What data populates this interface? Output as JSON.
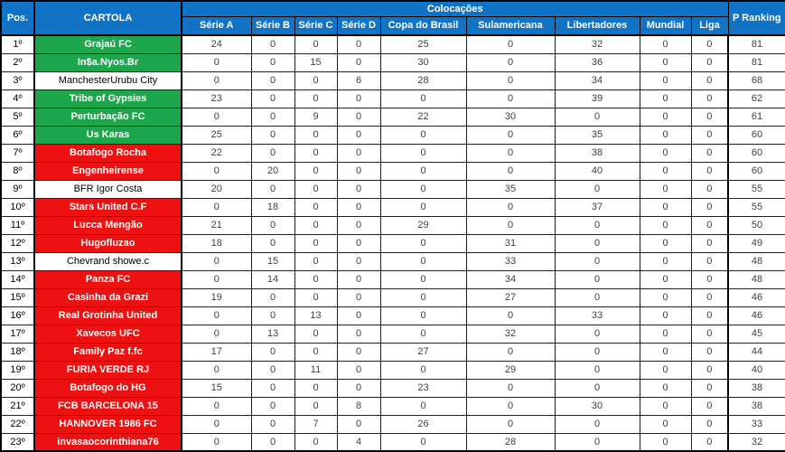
{
  "colors": {
    "header_bg": "#1173C5",
    "header_text": "#FFFFFF",
    "green_highlight": "#1EA64D",
    "red_highlight": "#EE1111",
    "number_text": "#3F3F3F",
    "border": "#000000"
  },
  "chart_data": {
    "type": "table",
    "title": "Colocações",
    "columns": [
      "Pos.",
      "CARTOLA",
      "Série A",
      "Série B",
      "Série C",
      "Série D",
      "Copa do Brasil",
      "Sulamericana",
      "Libertadores",
      "Mundial",
      "Liga",
      "P Ranking"
    ],
    "group_header": {
      "label": "Colocações",
      "spans": [
        "Série A",
        "Série B",
        "Série C",
        "Série D",
        "Copa do Brasil",
        "Sulamericana",
        "Libertadores",
        "Mundial",
        "Liga"
      ]
    },
    "rows": [
      {
        "pos": "1º",
        "cartola": "Grajaú FC",
        "highlight": "green",
        "values": [
          24,
          0,
          0,
          0,
          25,
          0,
          32,
          0,
          0
        ],
        "p_ranking": 81
      },
      {
        "pos": "2º",
        "cartola": "In$a.Nyos.Br",
        "highlight": "green",
        "values": [
          0,
          0,
          15,
          0,
          30,
          0,
          36,
          0,
          0
        ],
        "p_ranking": 81
      },
      {
        "pos": "3º",
        "cartola": "ManchesterUrubu City",
        "highlight": "white",
        "values": [
          0,
          0,
          0,
          6,
          28,
          0,
          34,
          0,
          0
        ],
        "p_ranking": 68
      },
      {
        "pos": "4º",
        "cartola": "Tribe of Gypsies",
        "highlight": "green",
        "values": [
          23,
          0,
          0,
          0,
          0,
          0,
          39,
          0,
          0
        ],
        "p_ranking": 62
      },
      {
        "pos": "5º",
        "cartola": "Perturbação FC",
        "highlight": "green",
        "values": [
          0,
          0,
          9,
          0,
          22,
          30,
          0,
          0,
          0
        ],
        "p_ranking": 61
      },
      {
        "pos": "6º",
        "cartola": "Us Karas",
        "highlight": "green",
        "values": [
          25,
          0,
          0,
          0,
          0,
          0,
          35,
          0,
          0
        ],
        "p_ranking": 60
      },
      {
        "pos": "7º",
        "cartola": "Botafogo Rocha",
        "highlight": "red",
        "values": [
          22,
          0,
          0,
          0,
          0,
          0,
          38,
          0,
          0
        ],
        "p_ranking": 60
      },
      {
        "pos": "8º",
        "cartola": "Engenheirense",
        "highlight": "red",
        "values": [
          0,
          20,
          0,
          0,
          0,
          0,
          40,
          0,
          0
        ],
        "p_ranking": 60
      },
      {
        "pos": "9º",
        "cartola": "BFR Igor Costa",
        "highlight": "white",
        "values": [
          20,
          0,
          0,
          0,
          0,
          35,
          0,
          0,
          0
        ],
        "p_ranking": 55
      },
      {
        "pos": "10º",
        "cartola": "Stars United C.F",
        "highlight": "red",
        "values": [
          0,
          18,
          0,
          0,
          0,
          0,
          37,
          0,
          0
        ],
        "p_ranking": 55
      },
      {
        "pos": "11º",
        "cartola": "Lucca Mengão",
        "highlight": "red",
        "values": [
          21,
          0,
          0,
          0,
          29,
          0,
          0,
          0,
          0
        ],
        "p_ranking": 50
      },
      {
        "pos": "12º",
        "cartola": "Hugofluzao",
        "highlight": "red",
        "values": [
          18,
          0,
          0,
          0,
          0,
          31,
          0,
          0,
          0
        ],
        "p_ranking": 49
      },
      {
        "pos": "13º",
        "cartola": "Chevrand showe.c",
        "highlight": "white",
        "values": [
          0,
          15,
          0,
          0,
          0,
          33,
          0,
          0,
          0
        ],
        "p_ranking": 48
      },
      {
        "pos": "14º",
        "cartola": "Panza FC",
        "highlight": "red",
        "values": [
          0,
          14,
          0,
          0,
          0,
          34,
          0,
          0,
          0
        ],
        "p_ranking": 48
      },
      {
        "pos": "15º",
        "cartola": "Casinha da Grazi",
        "highlight": "red",
        "values": [
          19,
          0,
          0,
          0,
          0,
          27,
          0,
          0,
          0
        ],
        "p_ranking": 46
      },
      {
        "pos": "16º",
        "cartola": "Real Grotinha United",
        "highlight": "red",
        "values": [
          0,
          0,
          13,
          0,
          0,
          0,
          33,
          0,
          0
        ],
        "p_ranking": 46
      },
      {
        "pos": "17º",
        "cartola": "Xavecos UFC",
        "highlight": "red",
        "values": [
          0,
          13,
          0,
          0,
          0,
          32,
          0,
          0,
          0
        ],
        "p_ranking": 45
      },
      {
        "pos": "18º",
        "cartola": "Family Paz f.fc",
        "highlight": "red",
        "values": [
          17,
          0,
          0,
          0,
          27,
          0,
          0,
          0,
          0
        ],
        "p_ranking": 44
      },
      {
        "pos": "19º",
        "cartola": "FURIA VERDE RJ",
        "highlight": "red",
        "values": [
          0,
          0,
          11,
          0,
          0,
          29,
          0,
          0,
          0
        ],
        "p_ranking": 40
      },
      {
        "pos": "20º",
        "cartola": "Botafogo do HG",
        "highlight": "red",
        "values": [
          15,
          0,
          0,
          0,
          23,
          0,
          0,
          0,
          0
        ],
        "p_ranking": 38
      },
      {
        "pos": "21º",
        "cartola": "FCB BARCELONA 15",
        "highlight": "red",
        "values": [
          0,
          0,
          0,
          8,
          0,
          0,
          30,
          0,
          0
        ],
        "p_ranking": 38
      },
      {
        "pos": "22º",
        "cartola": "HANNOVER 1986 FC",
        "highlight": "red",
        "values": [
          0,
          0,
          7,
          0,
          26,
          0,
          0,
          0,
          0
        ],
        "p_ranking": 33
      },
      {
        "pos": "23º",
        "cartola": "invasaocorinthiana76",
        "highlight": "red",
        "values": [
          0,
          0,
          0,
          4,
          0,
          28,
          0,
          0,
          0
        ],
        "p_ranking": 32
      }
    ],
    "partial_next_row": {
      "highlight": "red"
    }
  }
}
